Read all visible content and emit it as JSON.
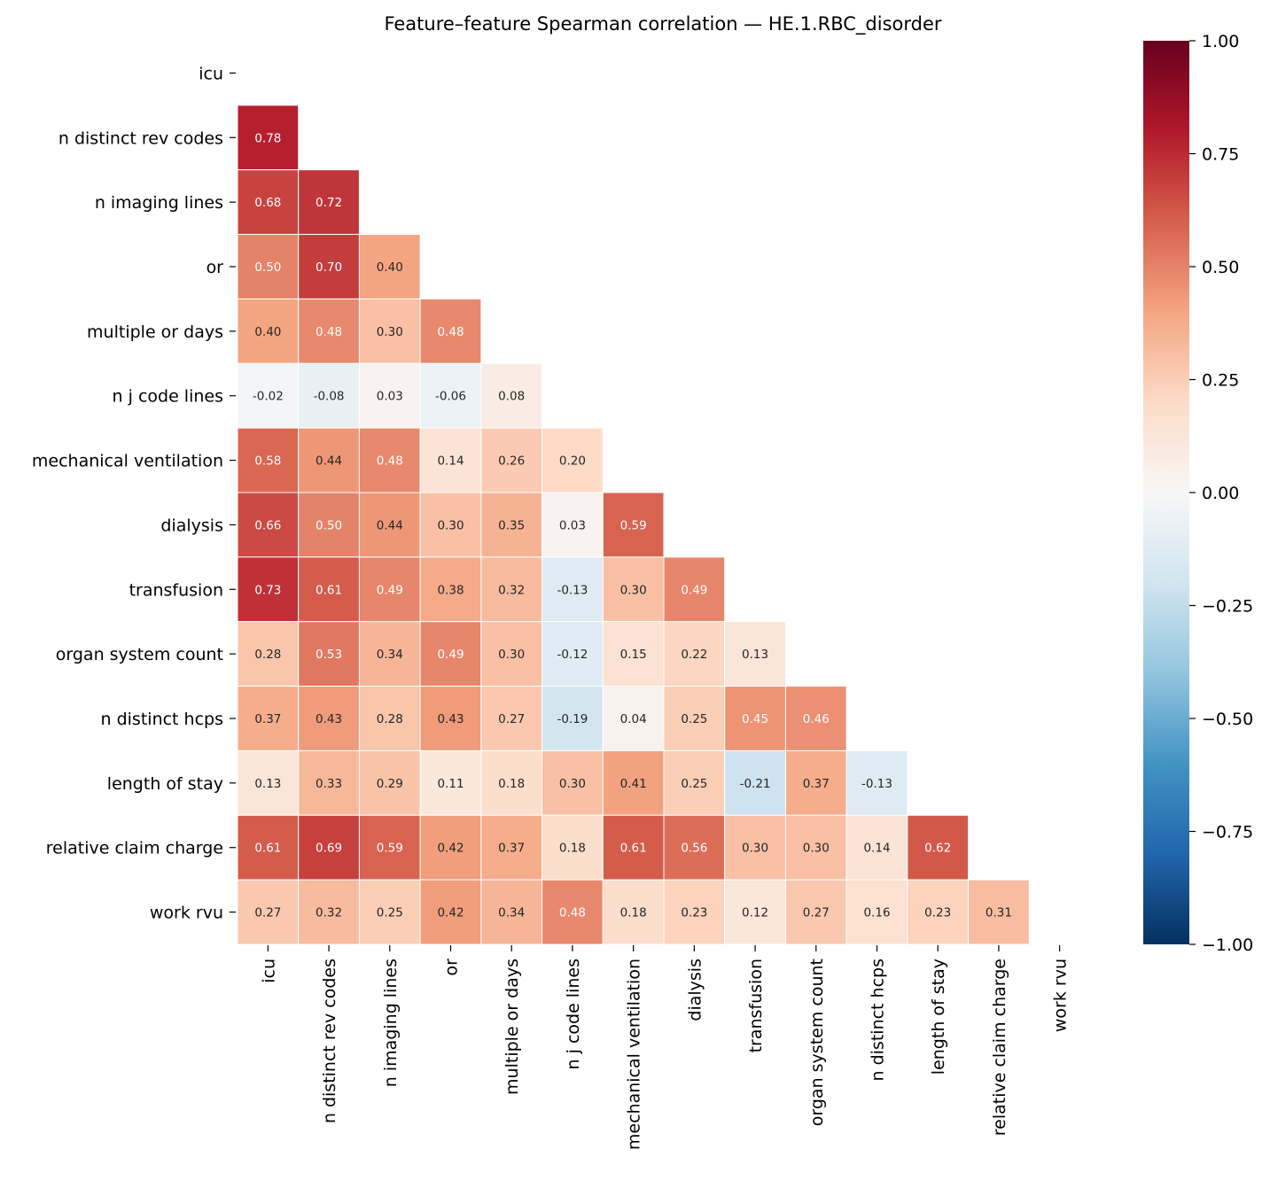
{
  "chart_data": {
    "type": "heatmap",
    "title": "Feature–feature Spearman correlation — HE.1.RBC_disorder",
    "labels": [
      "icu",
      "n distinct rev codes",
      "n imaging lines",
      "or",
      "multiple or days",
      "n j code lines",
      "mechanical ventilation",
      "dialysis",
      "transfusion",
      "organ system count",
      "n distinct hcps",
      "length of stay",
      "relative claim charge",
      "work rvu"
    ],
    "mask": "upper triangle including diagonal",
    "colormap": "RdBu_r",
    "vmin": -1.0,
    "vmax": 1.0,
    "colorbar_ticks": [
      "1.00",
      "0.75",
      "0.50",
      "0.25",
      "0.00",
      "−0.25",
      "−0.50",
      "−0.75",
      "−1.00"
    ],
    "colorbar_tick_values": [
      1.0,
      0.75,
      0.5,
      0.25,
      0.0,
      -0.25,
      -0.5,
      -0.75,
      -1.0
    ],
    "lower_triangle_rows": [
      [],
      [
        0.78
      ],
      [
        0.68,
        0.72
      ],
      [
        0.5,
        0.7,
        0.4
      ],
      [
        0.4,
        0.48,
        0.3,
        0.48
      ],
      [
        -0.02,
        -0.08,
        0.03,
        -0.06,
        0.08
      ],
      [
        0.58,
        0.44,
        0.48,
        0.14,
        0.26,
        0.2
      ],
      [
        0.66,
        0.5,
        0.44,
        0.3,
        0.35,
        0.03,
        0.59
      ],
      [
        0.73,
        0.61,
        0.49,
        0.38,
        0.32,
        -0.13,
        0.3,
        0.49
      ],
      [
        0.28,
        0.53,
        0.34,
        0.49,
        0.3,
        -0.12,
        0.15,
        0.22,
        0.13
      ],
      [
        0.37,
        0.43,
        0.28,
        0.43,
        0.27,
        -0.19,
        0.04,
        0.25,
        0.45,
        0.46
      ],
      [
        0.13,
        0.33,
        0.29,
        0.11,
        0.18,
        0.3,
        0.41,
        0.25,
        -0.21,
        0.37,
        -0.13
      ],
      [
        0.61,
        0.69,
        0.59,
        0.42,
        0.37,
        0.18,
        0.61,
        0.56,
        0.3,
        0.3,
        0.14,
        0.62
      ],
      [
        0.27,
        0.32,
        0.25,
        0.42,
        0.34,
        0.48,
        0.18,
        0.23,
        0.12,
        0.27,
        0.16,
        0.23,
        0.31
      ]
    ]
  }
}
